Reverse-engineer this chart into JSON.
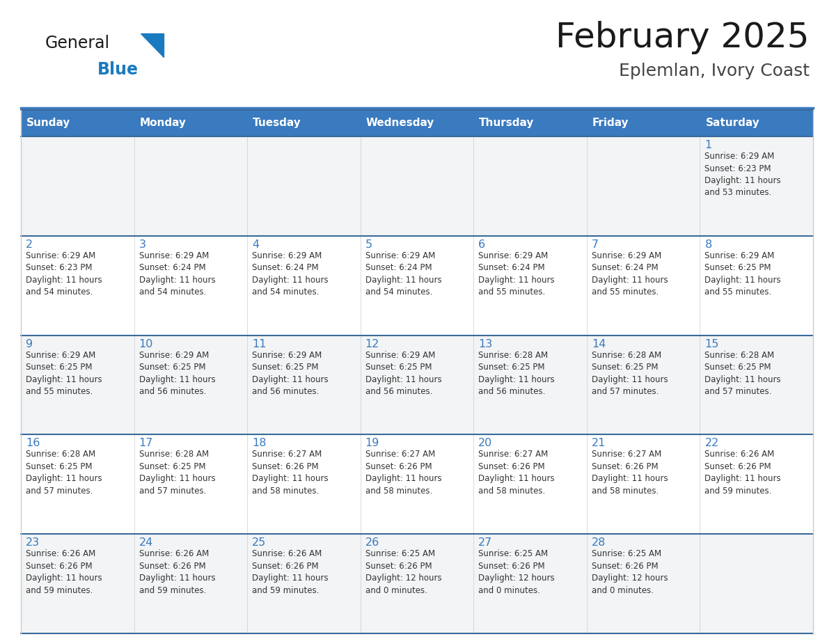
{
  "title": "February 2025",
  "subtitle": "Eplemlan, Ivory Coast",
  "days_of_week": [
    "Sunday",
    "Monday",
    "Tuesday",
    "Wednesday",
    "Thursday",
    "Friday",
    "Saturday"
  ],
  "header_bg": "#3a7abf",
  "header_text": "#ffffff",
  "cell_bg_odd": "#f2f4f5",
  "cell_bg_even": "#ffffff",
  "row_border_color": "#3a6a9a",
  "col_border_color": "#cccccc",
  "title_color": "#1a1a1a",
  "subtitle_color": "#444444",
  "day_num_color": "#3a7abf",
  "cell_text_color": "#333333",
  "logo_general_color": "#1a1a1a",
  "logo_blue_color": "#1a7abf",
  "weeks": [
    [
      {
        "day": null,
        "info": null
      },
      {
        "day": null,
        "info": null
      },
      {
        "day": null,
        "info": null
      },
      {
        "day": null,
        "info": null
      },
      {
        "day": null,
        "info": null
      },
      {
        "day": null,
        "info": null
      },
      {
        "day": 1,
        "info": "Sunrise: 6:29 AM\nSunset: 6:23 PM\nDaylight: 11 hours\nand 53 minutes."
      }
    ],
    [
      {
        "day": 2,
        "info": "Sunrise: 6:29 AM\nSunset: 6:23 PM\nDaylight: 11 hours\nand 54 minutes."
      },
      {
        "day": 3,
        "info": "Sunrise: 6:29 AM\nSunset: 6:24 PM\nDaylight: 11 hours\nand 54 minutes."
      },
      {
        "day": 4,
        "info": "Sunrise: 6:29 AM\nSunset: 6:24 PM\nDaylight: 11 hours\nand 54 minutes."
      },
      {
        "day": 5,
        "info": "Sunrise: 6:29 AM\nSunset: 6:24 PM\nDaylight: 11 hours\nand 54 minutes."
      },
      {
        "day": 6,
        "info": "Sunrise: 6:29 AM\nSunset: 6:24 PM\nDaylight: 11 hours\nand 55 minutes."
      },
      {
        "day": 7,
        "info": "Sunrise: 6:29 AM\nSunset: 6:24 PM\nDaylight: 11 hours\nand 55 minutes."
      },
      {
        "day": 8,
        "info": "Sunrise: 6:29 AM\nSunset: 6:25 PM\nDaylight: 11 hours\nand 55 minutes."
      }
    ],
    [
      {
        "day": 9,
        "info": "Sunrise: 6:29 AM\nSunset: 6:25 PM\nDaylight: 11 hours\nand 55 minutes."
      },
      {
        "day": 10,
        "info": "Sunrise: 6:29 AM\nSunset: 6:25 PM\nDaylight: 11 hours\nand 56 minutes."
      },
      {
        "day": 11,
        "info": "Sunrise: 6:29 AM\nSunset: 6:25 PM\nDaylight: 11 hours\nand 56 minutes."
      },
      {
        "day": 12,
        "info": "Sunrise: 6:29 AM\nSunset: 6:25 PM\nDaylight: 11 hours\nand 56 minutes."
      },
      {
        "day": 13,
        "info": "Sunrise: 6:28 AM\nSunset: 6:25 PM\nDaylight: 11 hours\nand 56 minutes."
      },
      {
        "day": 14,
        "info": "Sunrise: 6:28 AM\nSunset: 6:25 PM\nDaylight: 11 hours\nand 57 minutes."
      },
      {
        "day": 15,
        "info": "Sunrise: 6:28 AM\nSunset: 6:25 PM\nDaylight: 11 hours\nand 57 minutes."
      }
    ],
    [
      {
        "day": 16,
        "info": "Sunrise: 6:28 AM\nSunset: 6:25 PM\nDaylight: 11 hours\nand 57 minutes."
      },
      {
        "day": 17,
        "info": "Sunrise: 6:28 AM\nSunset: 6:25 PM\nDaylight: 11 hours\nand 57 minutes."
      },
      {
        "day": 18,
        "info": "Sunrise: 6:27 AM\nSunset: 6:26 PM\nDaylight: 11 hours\nand 58 minutes."
      },
      {
        "day": 19,
        "info": "Sunrise: 6:27 AM\nSunset: 6:26 PM\nDaylight: 11 hours\nand 58 minutes."
      },
      {
        "day": 20,
        "info": "Sunrise: 6:27 AM\nSunset: 6:26 PM\nDaylight: 11 hours\nand 58 minutes."
      },
      {
        "day": 21,
        "info": "Sunrise: 6:27 AM\nSunset: 6:26 PM\nDaylight: 11 hours\nand 58 minutes."
      },
      {
        "day": 22,
        "info": "Sunrise: 6:26 AM\nSunset: 6:26 PM\nDaylight: 11 hours\nand 59 minutes."
      }
    ],
    [
      {
        "day": 23,
        "info": "Sunrise: 6:26 AM\nSunset: 6:26 PM\nDaylight: 11 hours\nand 59 minutes."
      },
      {
        "day": 24,
        "info": "Sunrise: 6:26 AM\nSunset: 6:26 PM\nDaylight: 11 hours\nand 59 minutes."
      },
      {
        "day": 25,
        "info": "Sunrise: 6:26 AM\nSunset: 6:26 PM\nDaylight: 11 hours\nand 59 minutes."
      },
      {
        "day": 26,
        "info": "Sunrise: 6:25 AM\nSunset: 6:26 PM\nDaylight: 12 hours\nand 0 minutes."
      },
      {
        "day": 27,
        "info": "Sunrise: 6:25 AM\nSunset: 6:26 PM\nDaylight: 12 hours\nand 0 minutes."
      },
      {
        "day": 28,
        "info": "Sunrise: 6:25 AM\nSunset: 6:26 PM\nDaylight: 12 hours\nand 0 minutes."
      },
      {
        "day": null,
        "info": null
      }
    ]
  ]
}
